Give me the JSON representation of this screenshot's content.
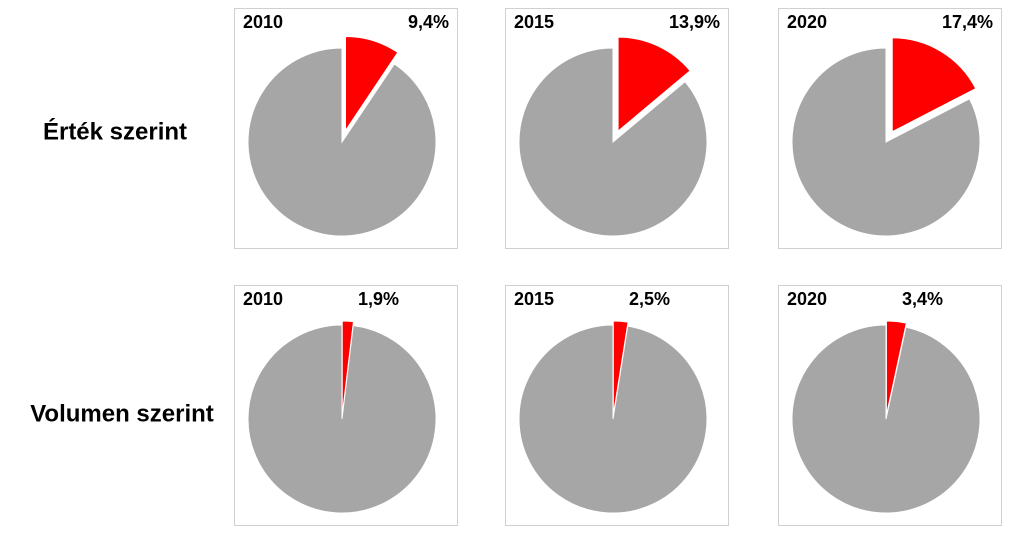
{
  "row_labels": [
    "Érték szerint",
    "Volumen szerint"
  ],
  "chart_data": [
    {
      "type": "pie",
      "title": "2010",
      "values": [
        9.4,
        90.6
      ],
      "value_labels": [
        "9,4%",
        null
      ],
      "colors": [
        "#ff0000",
        "#a6a6a6"
      ]
    },
    {
      "type": "pie",
      "title": "2015",
      "values": [
        13.9,
        86.1
      ],
      "value_labels": [
        "13,9%",
        null
      ],
      "colors": [
        "#ff0000",
        "#a6a6a6"
      ]
    },
    {
      "type": "pie",
      "title": "2020",
      "values": [
        17.4,
        82.6
      ],
      "value_labels": [
        "17,4%",
        null
      ],
      "colors": [
        "#ff0000",
        "#a6a6a6"
      ]
    },
    {
      "type": "pie",
      "title": "2010",
      "values": [
        1.9,
        98.1
      ],
      "value_labels": [
        "1,9%",
        null
      ],
      "colors": [
        "#ff0000",
        "#a6a6a6"
      ]
    },
    {
      "type": "pie",
      "title": "2015",
      "values": [
        2.5,
        97.5
      ],
      "value_labels": [
        "2,5%",
        null
      ],
      "colors": [
        "#ff0000",
        "#a6a6a6"
      ]
    },
    {
      "type": "pie",
      "title": "2020",
      "values": [
        3.4,
        96.6
      ],
      "value_labels": [
        "3,4%",
        null
      ],
      "colors": [
        "#ff0000",
        "#a6a6a6"
      ]
    }
  ]
}
